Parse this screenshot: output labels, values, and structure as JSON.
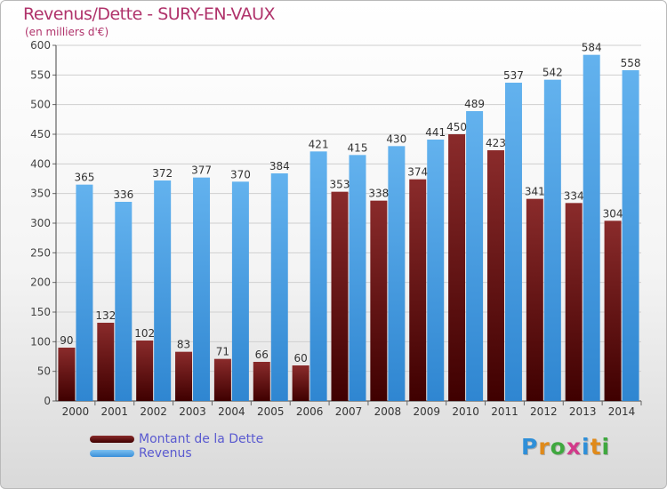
{
  "title": "Revenus/Dette - SURY-EN-VAUX",
  "subtitle": "(en milliers d'€)",
  "legend": {
    "dette_label": "Montant de la Dette",
    "revenus_label": "Revenus"
  },
  "logo": {
    "letters": [
      "P",
      "r",
      "o",
      "x",
      "i",
      "t",
      "i"
    ],
    "colors": [
      "#2f8fd8",
      "#e08a1a",
      "#3fa83f",
      "#d23a8a",
      "#2f8fd8",
      "#e08a1a",
      "#3fa83f"
    ]
  },
  "colors": {
    "dette_top": "#8a2b2b",
    "dette_bottom": "#3f0000",
    "revenus_top": "#63b2ee",
    "revenus_bottom": "#2f86d1",
    "grid": "#cfcfcf",
    "title": "#b0336b"
  },
  "chart_data": {
    "type": "bar",
    "title": "Revenus/Dette - SURY-EN-VAUX",
    "subtitle": "(en milliers d'€)",
    "xlabel": "",
    "ylabel": "",
    "ylim": [
      0,
      600
    ],
    "yticks": [
      0,
      50,
      100,
      150,
      200,
      250,
      300,
      350,
      400,
      450,
      500,
      550,
      600
    ],
    "grid": true,
    "legend_position": "bottom-left",
    "categories": [
      "2000",
      "2001",
      "2002",
      "2003",
      "2004",
      "2005",
      "2006",
      "2007",
      "2008",
      "2009",
      "2010",
      "2011",
      "2012",
      "2013",
      "2014"
    ],
    "series": [
      {
        "name": "Montant de la Dette",
        "values": [
          90,
          132,
          102,
          83,
          71,
          66,
          60,
          353,
          338,
          374,
          450,
          423,
          341,
          334,
          304
        ]
      },
      {
        "name": "Revenus",
        "values": [
          365,
          336,
          372,
          377,
          370,
          384,
          421,
          415,
          430,
          441,
          489,
          537,
          542,
          584,
          558
        ]
      }
    ]
  }
}
